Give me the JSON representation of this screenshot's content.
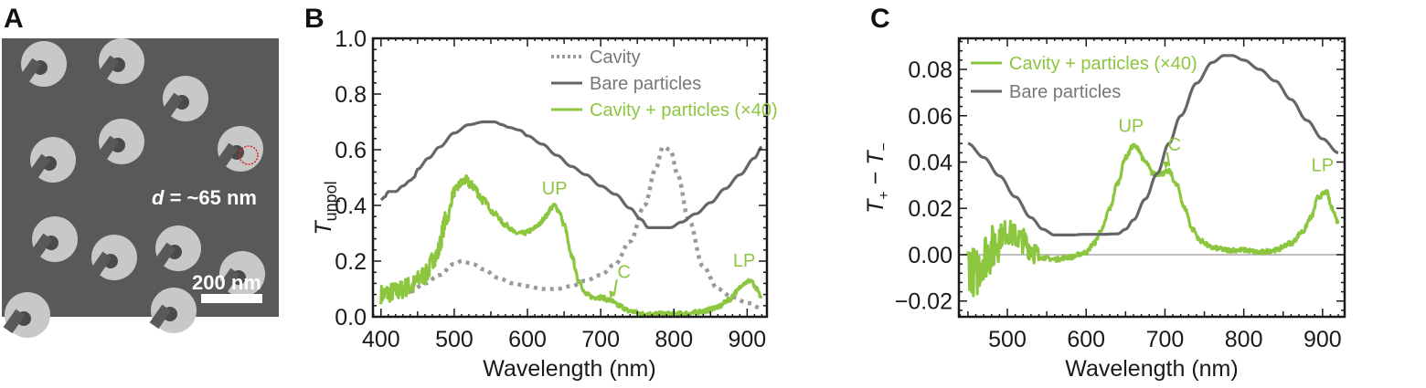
{
  "colors": {
    "green": "#8cc63f",
    "gray": "#666666",
    "dotted": "#9a9a9a",
    "zero_line": "#aaaaaa",
    "sem_bg": "#595959",
    "particle": "#c8c8c8",
    "highlight": "#e52020"
  },
  "panel_a": {
    "label": "A",
    "diameter_label": "d = ~65 nm",
    "diameter_symbol": "d",
    "diameter_value": " = ~65 nm",
    "scale_bar_label": "200 nm"
  },
  "chart_data": [
    {
      "panel_label": "B",
      "type": "line",
      "xlabel": "Wavelength (nm)",
      "ylabel": "T",
      "ylabel_sub": "unpol",
      "xlim": [
        389,
        927
      ],
      "ylim": [
        0,
        1
      ],
      "xticks": [
        400,
        500,
        600,
        700,
        800,
        900
      ],
      "yticks": [
        0.0,
        0.2,
        0.4,
        0.6,
        0.8,
        1.0
      ],
      "ytick_labels": [
        "0.0",
        "0.2",
        "0.4",
        "0.6",
        "0.8",
        "1.0"
      ],
      "grid": false,
      "legend_placement": "top-right",
      "series": [
        {
          "name": "Cavity",
          "style": "dotted",
          "color": "#9a9a9a",
          "x": [
            440,
            460,
            480,
            500,
            510,
            525,
            540,
            560,
            580,
            600,
            620,
            640,
            660,
            680,
            700,
            720,
            740,
            760,
            775,
            785,
            795,
            805,
            820,
            840,
            860,
            880,
            900,
            920
          ],
          "y": [
            0.09,
            0.12,
            0.15,
            0.19,
            0.2,
            0.19,
            0.17,
            0.14,
            0.12,
            0.11,
            0.1,
            0.1,
            0.11,
            0.13,
            0.15,
            0.19,
            0.27,
            0.4,
            0.53,
            0.61,
            0.6,
            0.51,
            0.35,
            0.18,
            0.1,
            0.07,
            0.05,
            0.03
          ]
        },
        {
          "name": "Bare particles",
          "style": "solid",
          "color": "#666666",
          "x": [
            400,
            405,
            410,
            420,
            430,
            440,
            445,
            450,
            465,
            480,
            500,
            520,
            540,
            555,
            565,
            575,
            590,
            600,
            620,
            640,
            660,
            680,
            700,
            720,
            740,
            755,
            765,
            780,
            795,
            810,
            830,
            850,
            870,
            890,
            910,
            920
          ],
          "y": [
            0.42,
            0.43,
            0.45,
            0.45,
            0.47,
            0.49,
            0.5,
            0.53,
            0.57,
            0.61,
            0.66,
            0.69,
            0.7,
            0.7,
            0.69,
            0.68,
            0.67,
            0.65,
            0.62,
            0.58,
            0.54,
            0.51,
            0.47,
            0.44,
            0.39,
            0.35,
            0.32,
            0.32,
            0.32,
            0.34,
            0.37,
            0.41,
            0.46,
            0.51,
            0.57,
            0.61
          ]
        },
        {
          "name": "Cavity + particles (×40)",
          "style": "solid",
          "color": "#8cc63f",
          "x": [
            400,
            420,
            440,
            460,
            475,
            490,
            500,
            510,
            515,
            525,
            540,
            555,
            570,
            585,
            595,
            605,
            615,
            625,
            632,
            637,
            643,
            650,
            660,
            670,
            680,
            690,
            700,
            712,
            725,
            740,
            760,
            780,
            800,
            820,
            840,
            860,
            875,
            885,
            895,
            905,
            912,
            920
          ],
          "y": [
            0.08,
            0.09,
            0.11,
            0.15,
            0.22,
            0.35,
            0.45,
            0.48,
            0.49,
            0.47,
            0.42,
            0.37,
            0.33,
            0.3,
            0.3,
            0.31,
            0.33,
            0.36,
            0.39,
            0.4,
            0.38,
            0.33,
            0.22,
            0.13,
            0.08,
            0.07,
            0.07,
            0.06,
            0.04,
            0.02,
            0.01,
            0.01,
            0.01,
            0.012,
            0.02,
            0.035,
            0.06,
            0.09,
            0.12,
            0.13,
            0.1,
            0.07
          ]
        }
      ],
      "annotations": [
        {
          "text": "UP",
          "x": 637,
          "y": 0.44
        },
        {
          "text": "C",
          "x": 732,
          "y": 0.14,
          "arrow_to": [
            713,
            0.065
          ]
        },
        {
          "text": "LP",
          "x": 896,
          "y": 0.18
        }
      ]
    },
    {
      "panel_label": "C",
      "type": "line",
      "xlabel": "Wavelength (nm)",
      "ylabel_parts": [
        "T",
        "+",
        " − ",
        "T",
        "−"
      ],
      "xlim": [
        438.5,
        928
      ],
      "ylim": [
        -0.0268,
        0.0934
      ],
      "xticks": [
        500,
        600,
        700,
        800,
        900
      ],
      "yticks": [
        -0.02,
        0.0,
        0.02,
        0.04,
        0.06,
        0.08
      ],
      "ytick_labels": [
        "−0.02",
        "0.00",
        "0.02",
        "0.04",
        "0.06",
        "0.08"
      ],
      "zero_line": 0.0,
      "grid": false,
      "legend_placement": "top-left",
      "series": [
        {
          "name": "Cavity + particles (×40)",
          "style": "solid",
          "color": "#8cc63f",
          "x": [
            450,
            460,
            470,
            480,
            490,
            500,
            510,
            520,
            530,
            540,
            560,
            580,
            600,
            610,
            620,
            630,
            640,
            650,
            660,
            665,
            675,
            685,
            695,
            705,
            715,
            725,
            735,
            745,
            760,
            780,
            800,
            820,
            840,
            860,
            875,
            885,
            895,
            905,
            912,
            920
          ],
          "y": [
            -0.004,
            -0.008,
            0.0,
            0.002,
            0.008,
            0.01,
            0.008,
            0.006,
            0.003,
            -0.001,
            -0.002,
            -0.001,
            0.001,
            0.005,
            0.011,
            0.02,
            0.031,
            0.042,
            0.047,
            0.046,
            0.04,
            0.035,
            0.035,
            0.036,
            0.03,
            0.02,
            0.011,
            0.006,
            0.003,
            0.002,
            0.002,
            0.001,
            0.002,
            0.005,
            0.01,
            0.016,
            0.025,
            0.027,
            0.02,
            0.014
          ]
        },
        {
          "name": "Bare particles",
          "style": "solid",
          "color": "#666666",
          "x": [
            450,
            470,
            490,
            510,
            530,
            545,
            560,
            580,
            600,
            620,
            640,
            650,
            660,
            675,
            690,
            705,
            720,
            740,
            760,
            775,
            785,
            800,
            820,
            840,
            860,
            880,
            900,
            920
          ],
          "y": [
            0.048,
            0.042,
            0.034,
            0.025,
            0.016,
            0.011,
            0.0085,
            0.0085,
            0.0088,
            0.0088,
            0.009,
            0.011,
            0.015,
            0.024,
            0.035,
            0.048,
            0.06,
            0.074,
            0.083,
            0.086,
            0.086,
            0.084,
            0.08,
            0.075,
            0.067,
            0.058,
            0.05,
            0.044
          ]
        }
      ],
      "annotations": [
        {
          "text": "UP",
          "x": 657,
          "y": 0.053
        },
        {
          "text": "C",
          "x": 712,
          "y": 0.045,
          "arrow_to": [
            701,
            0.037
          ]
        },
        {
          "text": "LP",
          "x": 900,
          "y": 0.036
        }
      ]
    }
  ]
}
